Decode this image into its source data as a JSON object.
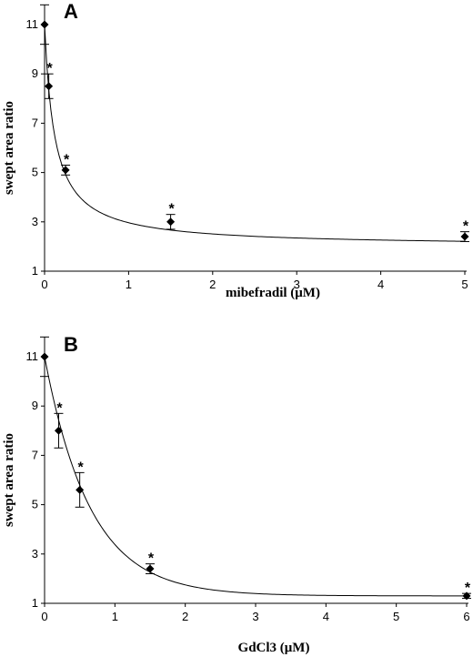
{
  "chart_data": [
    {
      "type": "scatter",
      "panel_label": "A",
      "xlabel": "mibefradil (μM)",
      "ylabel": "swept area ratio",
      "xlim": [
        0,
        5
      ],
      "ylim": [
        1,
        11
      ],
      "x_ticks": [
        "0",
        "1",
        "2",
        "3",
        "4",
        "5"
      ],
      "y_ticks": [
        "1",
        "3",
        "5",
        "7",
        "9",
        "11"
      ],
      "series": [
        {
          "x": [
            0,
            0.05,
            0.25,
            1.5,
            5
          ],
          "y": [
            11,
            8.5,
            5.1,
            3.0,
            2.4
          ],
          "err": [
            0.8,
            0.5,
            0.2,
            0.3,
            0.2
          ],
          "significance": [
            "",
            "*",
            "*",
            "*",
            "*"
          ]
        }
      ],
      "fit_curve": "hyperbolic decay",
      "grid": false
    },
    {
      "type": "scatter",
      "panel_label": "B",
      "xlabel": "GdCl3 (μM)",
      "ylabel": "swept area ratio",
      "xlim": [
        0,
        6
      ],
      "ylim": [
        1,
        11
      ],
      "x_ticks": [
        "0",
        "1",
        "2",
        "3",
        "4",
        "5",
        "6"
      ],
      "y_ticks": [
        "1",
        "3",
        "5",
        "7",
        "9",
        "11"
      ],
      "series": [
        {
          "x": [
            0,
            0.2,
            0.5,
            1.5,
            6
          ],
          "y": [
            11,
            8.0,
            5.6,
            2.4,
            1.3
          ],
          "err": [
            0.8,
            0.7,
            0.7,
            0.2,
            0.1
          ],
          "significance": [
            "",
            "*",
            "*",
            "*",
            "*"
          ]
        }
      ],
      "fit_curve": "exponential decay",
      "grid": false
    }
  ]
}
